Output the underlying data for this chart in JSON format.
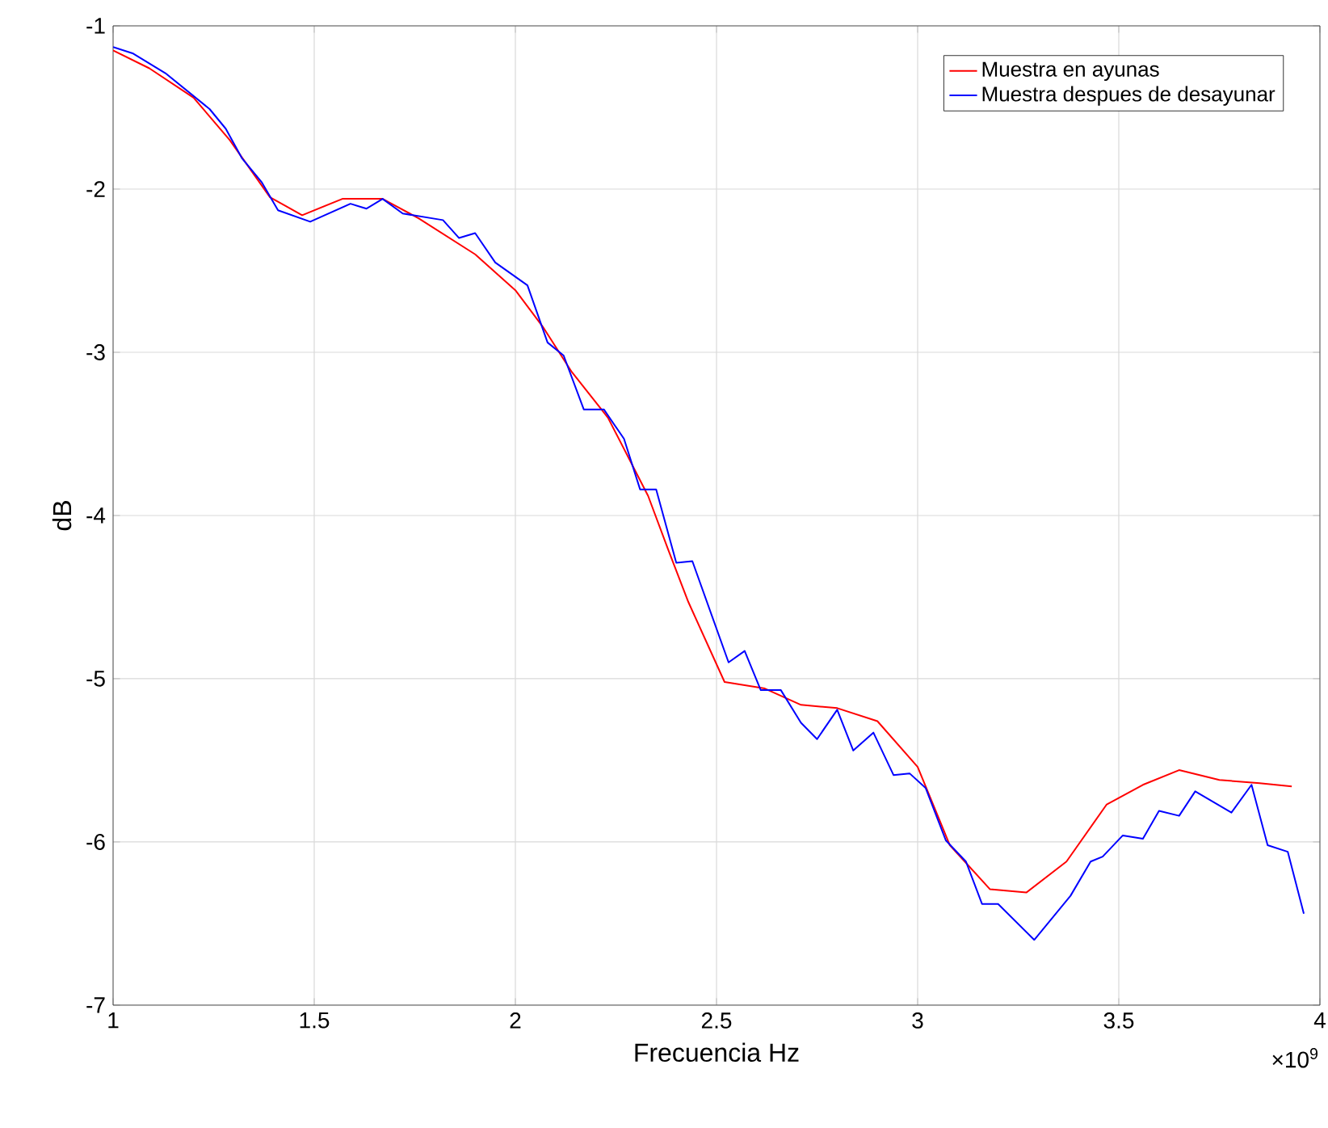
{
  "chart_data": {
    "type": "line",
    "xlabel": "Frecuencia Hz",
    "ylabel": "dB",
    "annotations": [
      "×10$^{9}$"
    ],
    "xlim": [
      1,
      4
    ],
    "ylim": [
      -7,
      -1
    ],
    "xticks": [
      1,
      1.5,
      2,
      2.5,
      3,
      3.5,
      4
    ],
    "yticks": [
      -7,
      -6,
      -5,
      -4,
      -3,
      -2,
      -1
    ],
    "grid": true,
    "legend": "top right",
    "marker": "none",
    "line_style": "solid",
    "series": [
      {
        "name": "Muestra en ayunas",
        "color": "#ff0000",
        "x": [
          1.0,
          1.09,
          1.2,
          1.29,
          1.39,
          1.47,
          1.57,
          1.67,
          1.76,
          1.9,
          2.0,
          2.07,
          2.14,
          2.23,
          2.33,
          2.38,
          2.43,
          2.52,
          2.62,
          2.71,
          2.8,
          2.9,
          3.0,
          3.08,
          3.18,
          3.27,
          3.37,
          3.47,
          3.56,
          3.65,
          3.75,
          3.85,
          3.93
        ],
        "values": [
          -1.15,
          -1.26,
          -1.44,
          -1.7,
          -2.05,
          -2.16,
          -2.06,
          -2.06,
          -2.18,
          -2.4,
          -2.62,
          -2.85,
          -3.12,
          -3.4,
          -3.88,
          -4.21,
          -4.53,
          -5.02,
          -5.06,
          -5.16,
          -5.18,
          -5.26,
          -5.54,
          -6.02,
          -6.29,
          -6.31,
          -6.12,
          -5.77,
          -5.65,
          -5.56,
          -5.62,
          -5.64,
          -5.66
        ]
      },
      {
        "name": "Muestra despues de desayunar",
        "color": "#0000ff",
        "x": [
          1.0,
          1.05,
          1.13,
          1.24,
          1.28,
          1.32,
          1.37,
          1.41,
          1.49,
          1.59,
          1.63,
          1.67,
          1.72,
          1.82,
          1.86,
          1.9,
          1.95,
          2.03,
          2.08,
          2.12,
          2.17,
          2.22,
          2.27,
          2.31,
          2.35,
          2.4,
          2.44,
          2.53,
          2.57,
          2.61,
          2.66,
          2.71,
          2.75,
          2.8,
          2.84,
          2.89,
          2.94,
          2.98,
          3.02,
          3.07,
          3.12,
          3.16,
          3.2,
          3.29,
          3.38,
          3.43,
          3.46,
          3.51,
          3.56,
          3.6,
          3.65,
          3.69,
          3.78,
          3.83,
          3.87,
          3.92,
          3.96
        ],
        "values": [
          -1.13,
          -1.17,
          -1.29,
          -1.51,
          -1.63,
          -1.81,
          -1.96,
          -2.13,
          -2.2,
          -2.09,
          -2.12,
          -2.06,
          -2.15,
          -2.19,
          -2.3,
          -2.27,
          -2.45,
          -2.59,
          -2.94,
          -3.02,
          -3.35,
          -3.35,
          -3.53,
          -3.84,
          -3.84,
          -4.29,
          -4.28,
          -4.9,
          -4.83,
          -5.07,
          -5.07,
          -5.27,
          -5.37,
          -5.19,
          -5.44,
          -5.33,
          -5.59,
          -5.58,
          -5.67,
          -5.99,
          -6.12,
          -6.38,
          -6.38,
          -6.6,
          -6.33,
          -6.12,
          -6.09,
          -5.96,
          -5.98,
          -5.81,
          -5.84,
          -5.69,
          -5.82,
          -5.65,
          -6.02,
          -6.06,
          -6.44
        ]
      }
    ]
  }
}
